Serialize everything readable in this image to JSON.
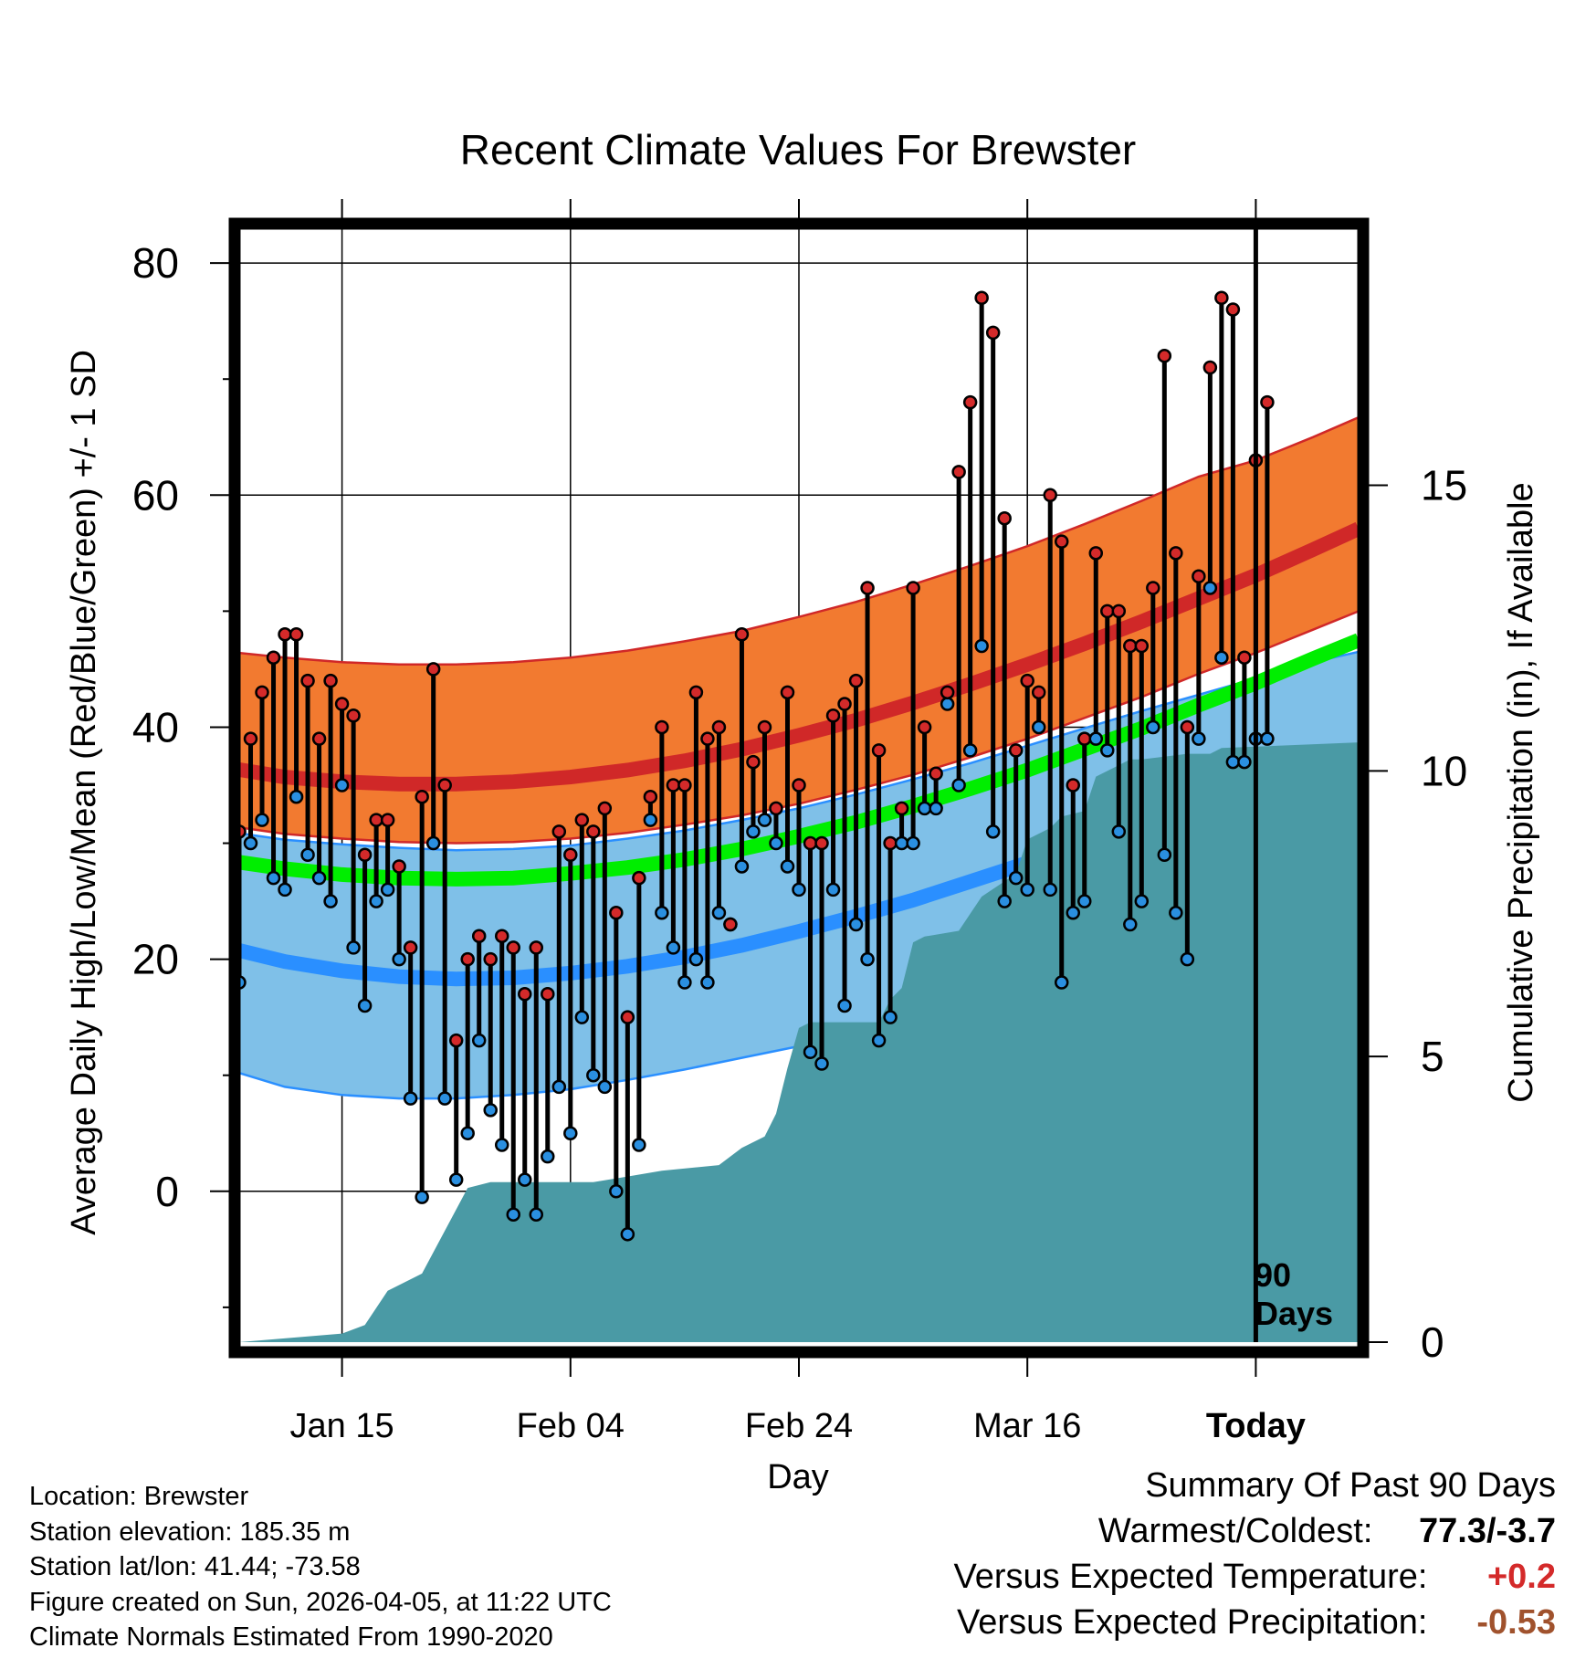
{
  "chart_data": {
    "type": "line",
    "title": "Recent Climate Values For Brewster",
    "xlabel": "Day",
    "ylabel": "Average Daily High/Low/Mean (Red/Blue/Green) +/- 1 SD",
    "y2label": "Cumulative Precipitation (in), If Available",
    "ylim": [
      -13,
      83
    ],
    "y2lim": [
      0,
      19.5
    ],
    "xlim": [
      -89,
      9
    ],
    "yticks": [
      "80",
      "60",
      "40",
      "20",
      "0"
    ],
    "y2ticks": [
      "15",
      "10",
      "5",
      "0"
    ],
    "xticks": [
      {
        "day": -80,
        "label": "Jan 15"
      },
      {
        "day": -60,
        "label": "Feb 04"
      },
      {
        "day": -40,
        "label": "Feb 24"
      },
      {
        "day": -20,
        "label": "Mar 16"
      },
      {
        "day": 0,
        "label": "Today"
      }
    ],
    "today_marker_label": [
      "90",
      "Days"
    ],
    "normals_days": [
      -90,
      -85,
      -80,
      -75,
      -70,
      -65,
      -60,
      -55,
      -50,
      -45,
      -40,
      -35,
      -30,
      -25,
      -20,
      -15,
      -10,
      -5,
      0,
      5,
      9
    ],
    "normals": {
      "high_mean": [
        36.5,
        35.7,
        35.3,
        35.1,
        35.1,
        35.3,
        35.7,
        36.3,
        37.1,
        38.1,
        39.3,
        40.6,
        42.1,
        43.7,
        45.4,
        47.2,
        49.1,
        51.1,
        53.1,
        55.3,
        57.1
      ],
      "high_upper": [
        46.5,
        46.0,
        45.6,
        45.4,
        45.4,
        45.6,
        46.0,
        46.6,
        47.4,
        48.3,
        49.5,
        50.8,
        52.3,
        53.9,
        55.6,
        57.5,
        59.5,
        61.6,
        63.0,
        65.0,
        66.7
      ],
      "high_lower": [
        31.5,
        30.8,
        30.4,
        30.1,
        30.0,
        30.1,
        30.4,
        30.9,
        31.6,
        32.4,
        33.4,
        34.6,
        35.9,
        37.4,
        39.0,
        40.8,
        42.6,
        44.6,
        46.4,
        48.4,
        50.0
      ],
      "mean": [
        28.5,
        27.8,
        27.3,
        27.0,
        26.9,
        27.0,
        27.4,
        27.9,
        28.6,
        29.5,
        30.6,
        31.8,
        33.2,
        34.7,
        36.3,
        38.1,
        39.9,
        41.9,
        43.8,
        45.9,
        47.5
      ],
      "low_mean": [
        21.0,
        19.8,
        19.0,
        18.5,
        18.3,
        18.4,
        18.8,
        19.4,
        20.2,
        21.2,
        22.4,
        23.7,
        25.1,
        26.7,
        28.3,
        30.0,
        31.8,
        33.6,
        35.3,
        37.0,
        38.0
      ],
      "low_upper": [
        31.0,
        30.3,
        29.9,
        29.6,
        29.4,
        29.5,
        29.8,
        30.4,
        31.1,
        32.0,
        33.0,
        34.2,
        35.5,
        36.9,
        38.4,
        39.9,
        41.4,
        42.8,
        44.2,
        45.6,
        46.5
      ],
      "low_lower": [
        10.5,
        9.0,
        8.3,
        8.0,
        8.0,
        8.3,
        8.8,
        9.6,
        10.5,
        11.5,
        12.5,
        13.8,
        15.2,
        16.8,
        18.5,
        20.3,
        22.2,
        24.2,
        26.2,
        28.6,
        30.5
      ]
    },
    "series": [
      {
        "name": "Daily High",
        "color": "#d42a2a",
        "values": [
          31,
          39,
          43,
          46,
          48,
          48,
          44,
          39,
          44,
          42,
          41,
          29,
          32,
          32,
          28,
          21,
          34,
          45,
          35,
          13,
          20,
          22,
          20,
          22,
          21,
          17,
          21,
          17,
          31,
          29,
          32,
          31,
          33,
          24,
          15,
          27,
          34,
          40,
          35,
          35,
          43,
          39,
          40,
          23,
          48,
          37,
          40,
          33,
          43,
          35,
          30,
          30,
          41,
          42,
          44,
          52,
          38,
          30,
          33,
          52,
          40,
          36,
          43,
          62,
          68,
          77,
          74,
          58,
          38,
          44,
          43,
          60,
          56,
          35,
          39,
          55,
          50,
          50,
          47,
          47,
          52,
          72,
          55,
          40,
          53,
          71,
          77,
          76,
          46,
          63,
          68
        ]
      },
      {
        "name": "Daily Low",
        "color": "#2a8fe0",
        "values": [
          18,
          30,
          32,
          27,
          26,
          34,
          29,
          27,
          25,
          35,
          21,
          16,
          25,
          26,
          20,
          8,
          -0.5,
          30,
          8,
          1,
          5,
          13,
          7,
          4,
          -2,
          1,
          -2,
          3,
          9,
          5,
          15,
          10,
          9,
          0,
          -3.7,
          4,
          32,
          24,
          21,
          18,
          20,
          18,
          24,
          23,
          28,
          31,
          32,
          30,
          28,
          26,
          12,
          11,
          26,
          16,
          23,
          20,
          13,
          15,
          30,
          30,
          33,
          33,
          42,
          35,
          38,
          47,
          31,
          25,
          27,
          26,
          40,
          26,
          18,
          24,
          25,
          39,
          38,
          31,
          23,
          25,
          40,
          29,
          24,
          20,
          39,
          52,
          46,
          37,
          37,
          39,
          39
        ]
      },
      {
        "name": "Cumulative Precipitation",
        "color": "#4a9aa5",
        "days": [
          -89,
          -80,
          -78,
          -76,
          -73,
          -69,
          -67,
          -58,
          -55,
          -52,
          -47,
          -45,
          -43,
          -42,
          -41,
          -40,
          -39,
          -36,
          -33,
          -32,
          -31,
          -30,
          -29,
          -26,
          -24,
          -21,
          -20,
          -18,
          -17,
          -15,
          -14,
          -13,
          -12,
          -11,
          -10,
          -6,
          -4,
          -3,
          9
        ],
        "values": [
          0,
          0.15,
          0.3,
          0.9,
          1.2,
          2.7,
          2.8,
          2.8,
          2.9,
          3.0,
          3.1,
          3.4,
          3.6,
          4.0,
          4.8,
          5.5,
          5.6,
          5.6,
          5.6,
          6.0,
          6.2,
          7.0,
          7.1,
          7.2,
          7.8,
          8.2,
          8.8,
          9.0,
          9.2,
          9.3,
          9.9,
          10.0,
          10.1,
          10.2,
          10.2,
          10.3,
          10.3,
          10.4,
          10.5
        ]
      }
    ]
  },
  "footer": {
    "location": "Location: Brewster",
    "elevation": "Station elevation: 185.35 m",
    "latlon": "Station lat/lon: 41.44; -73.58",
    "created": "Figure created on Sun, 2026-04-05, at 11:22 UTC",
    "normals": "Climate Normals Estimated From 1990-2020"
  },
  "summary": {
    "heading": "Summary Of Past 90 Days",
    "warmest_label": "Warmest/Coldest:",
    "warmest_value": "77.3/-3.7",
    "temp_label": "Versus Expected Temperature:",
    "temp_value": "+0.2",
    "precip_label": "Versus Expected Precipitation:",
    "precip_value": "-0.53"
  },
  "colors": {
    "high_band": "#f27a30",
    "high_mean": "#d02828",
    "low_band": "#7fc0e8",
    "low_mean": "#2a8fff",
    "mean": "#00ee00",
    "overlap": "#a01818",
    "precip": "#4a9aa5",
    "temp_positive": "#d42a2a",
    "precip_negative": "#a0522d"
  }
}
